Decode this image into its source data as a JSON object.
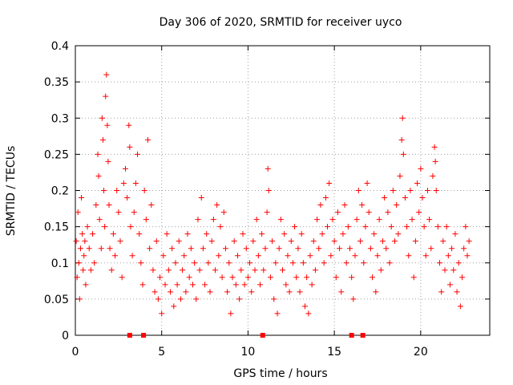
{
  "chart_data": {
    "type": "scatter",
    "title": "Day 306 of 2020, SRMTID for receiver uyco",
    "xlabel": "GPS time / hours",
    "ylabel": "SRMTID / TECUs",
    "xlim": [
      0,
      24
    ],
    "ylim": [
      0,
      0.4
    ],
    "xticks": [
      0,
      5,
      10,
      15,
      20
    ],
    "xtick_labels": [
      "0",
      "5",
      "10",
      "15",
      "20"
    ],
    "yticks": [
      0,
      0.05,
      0.1,
      0.15,
      0.2,
      0.25,
      0.3,
      0.35,
      0.4
    ],
    "ytick_labels": [
      "0",
      "0.05",
      "0.1",
      "0.15",
      "0.2",
      "0.25",
      "0.3",
      "0.35",
      "0.4"
    ],
    "grid": true,
    "marker": "plus",
    "color": "#ff0000",
    "series": [
      {
        "name": "SRMTID",
        "points": [
          [
            0.05,
            0.13
          ],
          [
            0.1,
            0.08
          ],
          [
            0.15,
            0.17
          ],
          [
            0.2,
            0.1
          ],
          [
            0.25,
            0.05
          ],
          [
            0.3,
            0.12
          ],
          [
            0.35,
            0.19
          ],
          [
            0.4,
            0.14
          ],
          [
            0.45,
            0.09
          ],
          [
            0.5,
            0.11
          ],
          [
            0.55,
            0.13
          ],
          [
            0.6,
            0.07
          ],
          [
            0.7,
            0.15
          ],
          [
            0.8,
            0.12
          ],
          [
            0.9,
            0.09
          ],
          [
            1.0,
            0.14
          ],
          [
            1.1,
            0.1
          ],
          [
            1.2,
            0.18
          ],
          [
            1.3,
            0.25
          ],
          [
            1.35,
            0.22
          ],
          [
            1.4,
            0.16
          ],
          [
            1.5,
            0.12
          ],
          [
            1.55,
            0.3
          ],
          [
            1.6,
            0.27
          ],
          [
            1.65,
            0.2
          ],
          [
            1.7,
            0.15
          ],
          [
            1.75,
            0.33
          ],
          [
            1.8,
            0.36
          ],
          [
            1.85,
            0.29
          ],
          [
            1.9,
            0.24
          ],
          [
            1.95,
            0.18
          ],
          [
            2.0,
            0.12
          ],
          [
            2.1,
            0.09
          ],
          [
            2.2,
            0.14
          ],
          [
            2.3,
            0.11
          ],
          [
            2.4,
            0.2
          ],
          [
            2.5,
            0.17
          ],
          [
            2.6,
            0.13
          ],
          [
            2.7,
            0.08
          ],
          [
            2.8,
            0.21
          ],
          [
            2.9,
            0.23
          ],
          [
            3.0,
            0.19
          ],
          [
            3.1,
            0.29
          ],
          [
            3.15,
            0.26
          ],
          [
            3.2,
            0.15
          ],
          [
            3.3,
            0.11
          ],
          [
            3.4,
            0.17
          ],
          [
            3.5,
            0.21
          ],
          [
            3.6,
            0.25
          ],
          [
            3.7,
            0.14
          ],
          [
            3.8,
            0.1
          ],
          [
            3.9,
            0.07
          ],
          [
            4.0,
            0.2
          ],
          [
            4.1,
            0.16
          ],
          [
            4.2,
            0.27
          ],
          [
            4.3,
            0.12
          ],
          [
            4.4,
            0.18
          ],
          [
            4.5,
            0.09
          ],
          [
            4.6,
            0.06
          ],
          [
            4.7,
            0.13
          ],
          [
            4.8,
            0.05
          ],
          [
            4.9,
            0.08
          ],
          [
            5.0,
            0.03
          ],
          [
            5.1,
            0.11
          ],
          [
            5.2,
            0.07
          ],
          [
            5.3,
            0.14
          ],
          [
            5.4,
            0.09
          ],
          [
            5.5,
            0.06
          ],
          [
            5.6,
            0.12
          ],
          [
            5.7,
            0.04
          ],
          [
            5.8,
            0.1
          ],
          [
            5.9,
            0.07
          ],
          [
            6.0,
            0.13
          ],
          [
            6.1,
            0.05
          ],
          [
            6.2,
            0.09
          ],
          [
            6.3,
            0.11
          ],
          [
            6.4,
            0.06
          ],
          [
            6.5,
            0.14
          ],
          [
            6.6,
            0.08
          ],
          [
            6.7,
            0.12
          ],
          [
            6.8,
            0.07
          ],
          [
            6.9,
            0.1
          ],
          [
            7.0,
            0.05
          ],
          [
            7.1,
            0.16
          ],
          [
            7.2,
            0.09
          ],
          [
            7.3,
            0.19
          ],
          [
            7.4,
            0.12
          ],
          [
            7.5,
            0.07
          ],
          [
            7.6,
            0.14
          ],
          [
            7.7,
            0.1
          ],
          [
            7.8,
            0.06
          ],
          [
            7.9,
            0.13
          ],
          [
            8.0,
            0.16
          ],
          [
            8.1,
            0.09
          ],
          [
            8.2,
            0.18
          ],
          [
            8.3,
            0.11
          ],
          [
            8.4,
            0.15
          ],
          [
            8.5,
            0.08
          ],
          [
            8.6,
            0.17
          ],
          [
            8.7,
            0.12
          ],
          [
            8.8,
            0.06
          ],
          [
            8.9,
            0.1
          ],
          [
            9.0,
            0.03
          ],
          [
            9.1,
            0.08
          ],
          [
            9.2,
            0.13
          ],
          [
            9.3,
            0.07
          ],
          [
            9.4,
            0.11
          ],
          [
            9.5,
            0.05
          ],
          [
            9.6,
            0.09
          ],
          [
            9.7,
            0.14
          ],
          [
            9.8,
            0.07
          ],
          [
            9.9,
            0.12
          ],
          [
            10.0,
            0.08
          ],
          [
            10.1,
            0.1
          ],
          [
            10.2,
            0.06
          ],
          [
            10.3,
            0.13
          ],
          [
            10.4,
            0.09
          ],
          [
            10.5,
            0.16
          ],
          [
            10.6,
            0.11
          ],
          [
            10.7,
            0.07
          ],
          [
            10.8,
            0.14
          ],
          [
            10.9,
            0.09
          ],
          [
            11.0,
            0.12
          ],
          [
            11.1,
            0.17
          ],
          [
            11.15,
            0.23
          ],
          [
            11.2,
            0.2
          ],
          [
            11.3,
            0.08
          ],
          [
            11.4,
            0.13
          ],
          [
            11.5,
            0.05
          ],
          [
            11.6,
            0.1
          ],
          [
            11.7,
            0.03
          ],
          [
            11.8,
            0.12
          ],
          [
            11.9,
            0.16
          ],
          [
            12.0,
            0.09
          ],
          [
            12.1,
            0.14
          ],
          [
            12.2,
            0.07
          ],
          [
            12.3,
            0.11
          ],
          [
            12.4,
            0.06
          ],
          [
            12.5,
            0.13
          ],
          [
            12.6,
            0.1
          ],
          [
            12.7,
            0.15
          ],
          [
            12.8,
            0.08
          ],
          [
            12.9,
            0.12
          ],
          [
            13.0,
            0.06
          ],
          [
            13.1,
            0.14
          ],
          [
            13.2,
            0.1
          ],
          [
            13.3,
            0.04
          ],
          [
            13.4,
            0.08
          ],
          [
            13.5,
            0.03
          ],
          [
            13.6,
            0.11
          ],
          [
            13.7,
            0.07
          ],
          [
            13.8,
            0.13
          ],
          [
            13.9,
            0.09
          ],
          [
            14.0,
            0.16
          ],
          [
            14.1,
            0.12
          ],
          [
            14.2,
            0.18
          ],
          [
            14.3,
            0.14
          ],
          [
            14.4,
            0.1
          ],
          [
            14.5,
            0.19
          ],
          [
            14.6,
            0.15
          ],
          [
            14.7,
            0.21
          ],
          [
            14.8,
            0.11
          ],
          [
            14.9,
            0.16
          ],
          [
            15.0,
            0.13
          ],
          [
            15.1,
            0.08
          ],
          [
            15.2,
            0.17
          ],
          [
            15.3,
            0.12
          ],
          [
            15.4,
            0.06
          ],
          [
            15.5,
            0.14
          ],
          [
            15.6,
            0.18
          ],
          [
            15.7,
            0.1
          ],
          [
            15.8,
            0.15
          ],
          [
            15.9,
            0.12
          ],
          [
            16.0,
            0.08
          ],
          [
            16.1,
            0.05
          ],
          [
            16.2,
            0.11
          ],
          [
            16.3,
            0.16
          ],
          [
            16.4,
            0.2
          ],
          [
            16.5,
            0.13
          ],
          [
            16.6,
            0.18
          ],
          [
            16.7,
            0.1
          ],
          [
            16.8,
            0.15
          ],
          [
            16.9,
            0.21
          ],
          [
            17.0,
            0.17
          ],
          [
            17.1,
            0.12
          ],
          [
            17.2,
            0.08
          ],
          [
            17.3,
            0.14
          ],
          [
            17.4,
            0.06
          ],
          [
            17.5,
            0.11
          ],
          [
            17.6,
            0.16
          ],
          [
            17.7,
            0.09
          ],
          [
            17.8,
            0.13
          ],
          [
            17.9,
            0.19
          ],
          [
            18.0,
            0.12
          ],
          [
            18.1,
            0.17
          ],
          [
            18.2,
            0.1
          ],
          [
            18.3,
            0.15
          ],
          [
            18.4,
            0.2
          ],
          [
            18.5,
            0.13
          ],
          [
            18.6,
            0.18
          ],
          [
            18.7,
            0.14
          ],
          [
            18.8,
            0.22
          ],
          [
            18.9,
            0.27
          ],
          [
            18.95,
            0.3
          ],
          [
            19.0,
            0.25
          ],
          [
            19.1,
            0.19
          ],
          [
            19.2,
            0.15
          ],
          [
            19.3,
            0.11
          ],
          [
            19.4,
            0.2
          ],
          [
            19.5,
            0.16
          ],
          [
            19.6,
            0.08
          ],
          [
            19.7,
            0.13
          ],
          [
            19.8,
            0.21
          ],
          [
            19.9,
            0.17
          ],
          [
            20.0,
            0.23
          ],
          [
            20.1,
            0.19
          ],
          [
            20.2,
            0.15
          ],
          [
            20.3,
            0.11
          ],
          [
            20.4,
            0.2
          ],
          [
            20.5,
            0.16
          ],
          [
            20.6,
            0.12
          ],
          [
            20.7,
            0.22
          ],
          [
            20.8,
            0.26
          ],
          [
            20.85,
            0.24
          ],
          [
            20.9,
            0.2
          ],
          [
            21.0,
            0.15
          ],
          [
            21.1,
            0.1
          ],
          [
            21.2,
            0.06
          ],
          [
            21.3,
            0.13
          ],
          [
            21.4,
            0.09
          ],
          [
            21.5,
            0.15
          ],
          [
            21.6,
            0.11
          ],
          [
            21.7,
            0.07
          ],
          [
            21.8,
            0.12
          ],
          [
            21.9,
            0.09
          ],
          [
            22.0,
            0.14
          ],
          [
            22.1,
            0.06
          ],
          [
            22.2,
            0.1
          ],
          [
            22.3,
            0.04
          ],
          [
            22.4,
            0.08
          ],
          [
            22.5,
            0.12
          ],
          [
            22.6,
            0.15
          ],
          [
            22.7,
            0.11
          ],
          [
            22.8,
            0.13
          ]
        ]
      }
    ],
    "zero_markers_x": [
      3.15,
      3.95,
      10.85,
      16.0,
      16.65
    ]
  }
}
